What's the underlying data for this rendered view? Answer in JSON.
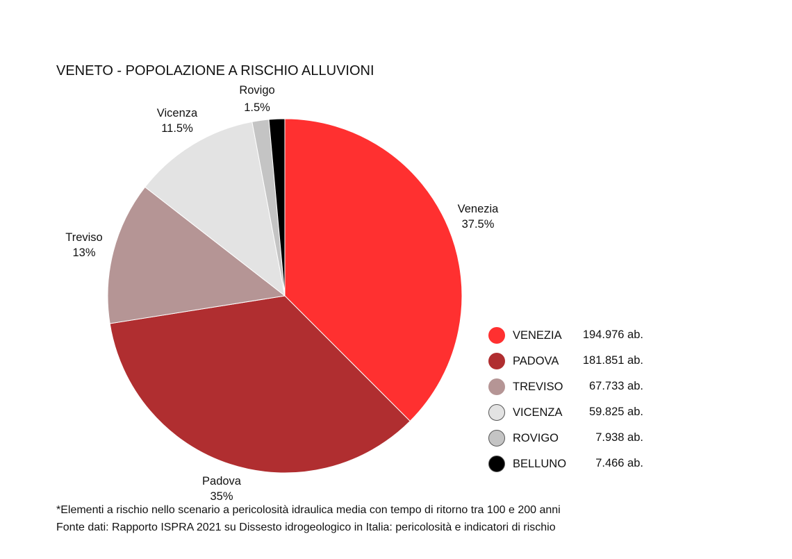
{
  "chart_data": {
    "type": "pie",
    "title": "VENETO - POPOLAZIONE A RISCHIO ALLUVIONI",
    "slices": [
      {
        "name": "Venezia",
        "percent_label": "37.5%",
        "value": 194976,
        "legend_name": "VENEZIA",
        "legend_value": "194.976 ab.",
        "color": "#ff3030"
      },
      {
        "name": "Padova",
        "percent_label": "35%",
        "value": 181851,
        "legend_name": "PADOVA",
        "legend_value": "181.851 ab.",
        "color": "#b02e30"
      },
      {
        "name": "Treviso",
        "percent_label": "13%",
        "value": 67733,
        "legend_name": "TREVISO",
        "legend_value": "67.733 ab.",
        "color": "#b59595"
      },
      {
        "name": "Vicenza",
        "percent_label": "11.5%",
        "value": 59825,
        "legend_name": "VICENZA",
        "legend_value": "59.825 ab.",
        "color": "#e3e3e3"
      },
      {
        "name": "Rovigo",
        "percent_label": "1.5%",
        "value": 7938,
        "legend_name": "ROVIGO",
        "legend_value": "7.938 ab.",
        "color": "#c4c4c4"
      },
      {
        "name": "Belluno",
        "percent_label": "",
        "value": 7466,
        "legend_name": "BELLUNO",
        "legend_value": "7.466 ab.",
        "color": "#000000"
      }
    ],
    "legend_placement": "bottom-right"
  },
  "footnotes": {
    "line1": "*Elementi a rischio nello scenario a pericolosità idraulica media con tempo di ritorno tra 100 e 200 anni",
    "line2": "Fonte dati: Rapporto ISPRA 2021 su Dissesto idrogeologico in Italia: pericolosità e indicatori di rischio"
  }
}
